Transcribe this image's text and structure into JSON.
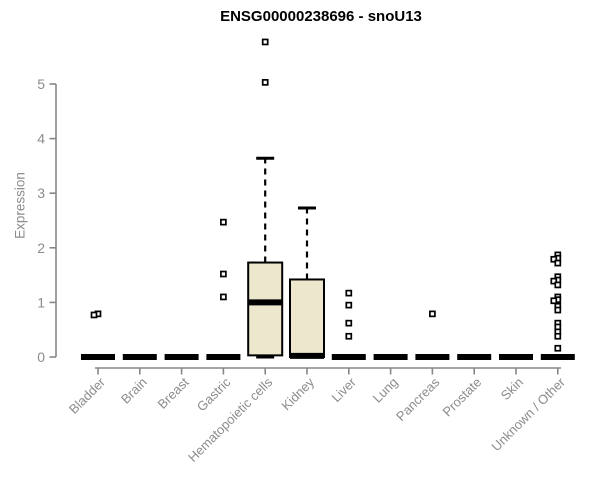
{
  "header": {
    "title": "ENSG00000238696 - snoU13"
  },
  "chart_data": {
    "type": "boxplot",
    "title": "ENSG00000238696 - snoU13",
    "xlabel": "",
    "ylabel": "Expression",
    "ylim": [
      0,
      5.9
    ],
    "yticks": [
      0,
      1,
      2,
      3,
      4,
      5
    ],
    "grid": false,
    "legend": "none",
    "marker": "open-square",
    "box_fill": "#EDE8CD",
    "box_stroke": "#000000",
    "axis_color": "#878787",
    "label_color": "#8c8c8c",
    "categories": [
      "Bladder",
      "Brain",
      "Breast",
      "Gastric",
      "Hematopoietic cells",
      "Kidney",
      "Liver",
      "Lung",
      "Pancreas",
      "Prostate",
      "Skin",
      "Unknown / Other"
    ],
    "series": [
      {
        "category": "Bladder",
        "q1": 0,
        "median": 0,
        "q3": 0,
        "whisker_low": 0,
        "whisker_high": 0,
        "outliers": [
          0.79,
          0.77
        ]
      },
      {
        "category": "Brain",
        "q1": 0,
        "median": 0,
        "q3": 0,
        "whisker_low": 0,
        "whisker_high": 0,
        "outliers": []
      },
      {
        "category": "Breast",
        "q1": 0,
        "median": 0,
        "q3": 0,
        "whisker_low": 0,
        "whisker_high": 0,
        "outliers": []
      },
      {
        "category": "Gastric",
        "q1": 0,
        "median": 0,
        "q3": 0,
        "whisker_low": 0,
        "whisker_high": 0,
        "outliers": [
          2.47,
          1.52,
          1.1
        ]
      },
      {
        "category": "Hematopoietic cells",
        "q1": 0.03,
        "median": 1.0,
        "q3": 1.73,
        "whisker_low": 0,
        "whisker_high": 3.64,
        "outliers": [
          5.77,
          5.03
        ]
      },
      {
        "category": "Kidney",
        "q1": 0,
        "median": 0.02,
        "q3": 1.42,
        "whisker_low": 0,
        "whisker_high": 2.73,
        "outliers": []
      },
      {
        "category": "Liver",
        "q1": 0,
        "median": 0,
        "q3": 0,
        "whisker_low": 0,
        "whisker_high": 0,
        "outliers": [
          1.17,
          0.95,
          0.62,
          0.38
        ]
      },
      {
        "category": "Lung",
        "q1": 0,
        "median": 0,
        "q3": 0,
        "whisker_low": 0,
        "whisker_high": 0,
        "outliers": []
      },
      {
        "category": "Pancreas",
        "q1": 0,
        "median": 0,
        "q3": 0,
        "whisker_low": 0,
        "whisker_high": 0,
        "outliers": [
          0.79
        ]
      },
      {
        "category": "Prostate",
        "q1": 0,
        "median": 0,
        "q3": 0,
        "whisker_low": 0,
        "whisker_high": 0,
        "outliers": []
      },
      {
        "category": "Skin",
        "q1": 0,
        "median": 0,
        "q3": 0,
        "whisker_low": 0,
        "whisker_high": 0,
        "outliers": []
      },
      {
        "category": "Unknown / Other",
        "q1": 0,
        "median": 0,
        "q3": 0,
        "whisker_low": 0,
        "whisker_high": 0,
        "outliers": [
          1.87,
          1.81,
          1.79,
          1.72,
          1.47,
          1.41,
          1.39,
          1.32,
          1.1,
          1.05,
          1.03,
          0.93,
          0.86,
          0.62,
          0.55,
          0.46,
          0.38,
          0.16
        ]
      }
    ]
  }
}
